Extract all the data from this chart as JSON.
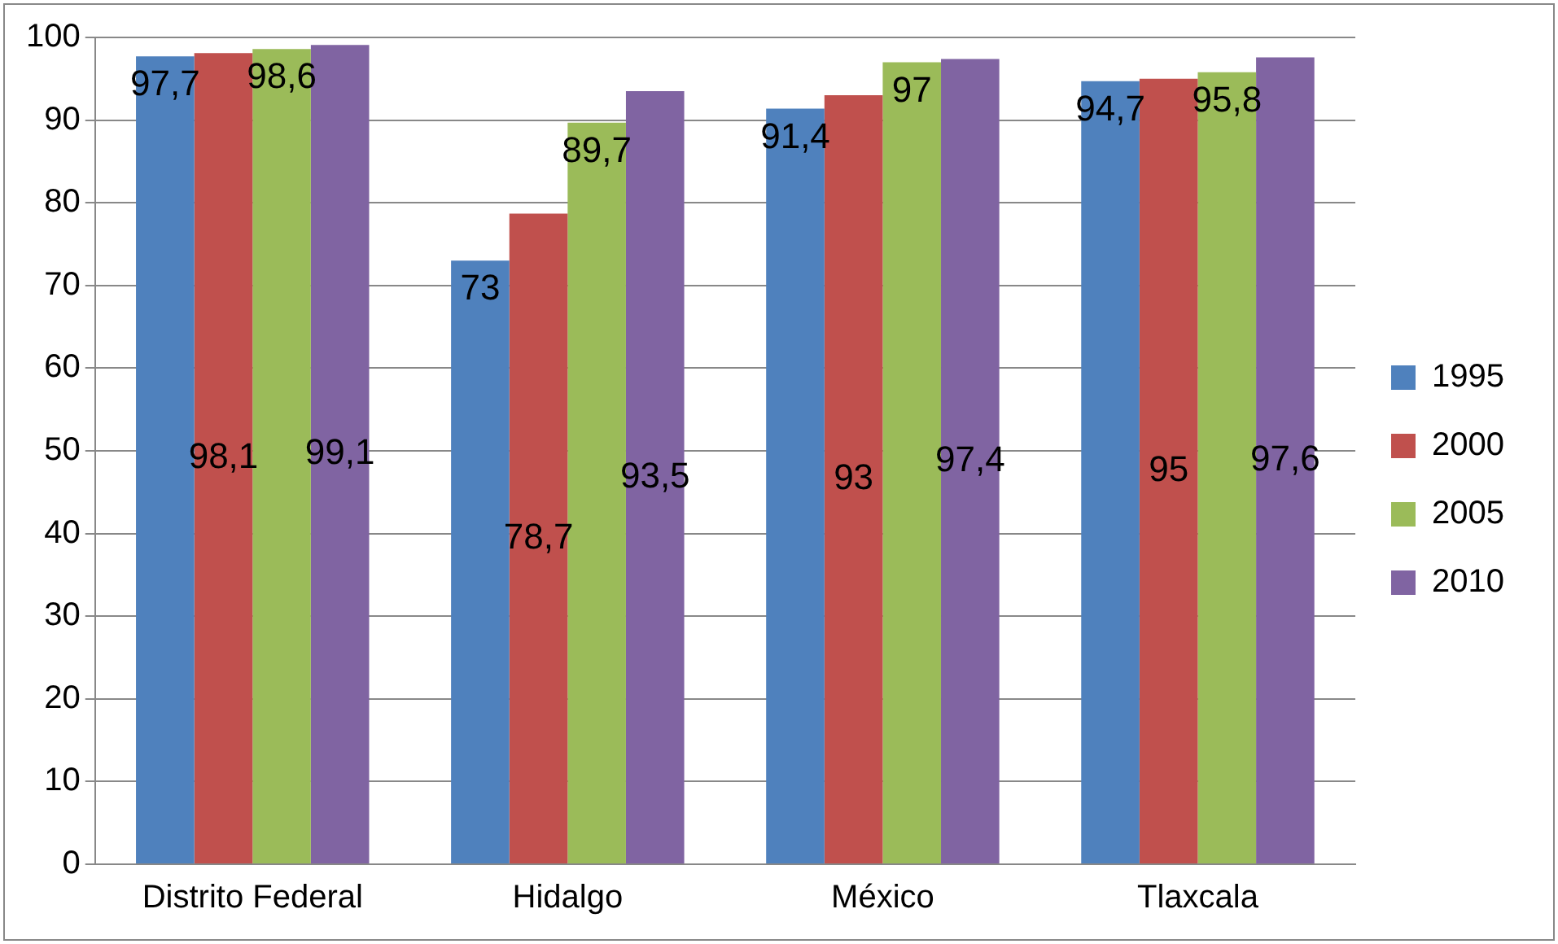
{
  "chart_data": {
    "type": "bar",
    "categories": [
      "Distrito Federal",
      "Hidalgo",
      "México",
      "Tlaxcala"
    ],
    "series": [
      {
        "name": "1995",
        "color": "#4f81bd",
        "values": [
          97.7,
          73,
          91.4,
          94.7
        ],
        "value_labels": [
          "97,7",
          "73",
          "91,4",
          "94,7"
        ]
      },
      {
        "name": "2000",
        "color": "#c0504d",
        "values": [
          98.1,
          78.7,
          93,
          95
        ],
        "value_labels": [
          "98,1",
          "78,7",
          "93",
          "95"
        ]
      },
      {
        "name": "2005",
        "color": "#9bbb59",
        "values": [
          98.6,
          89.7,
          97,
          95.8
        ],
        "value_labels": [
          "98,6",
          "89,7",
          "97",
          "95,8"
        ]
      },
      {
        "name": "2010",
        "color": "#8064a2",
        "values": [
          99.1,
          93.5,
          97.4,
          97.6
        ],
        "value_labels": [
          "99,1",
          "93,5",
          "97,4",
          "97,6"
        ]
      }
    ],
    "ylim": [
      0,
      100
    ],
    "yticks": [
      0,
      10,
      20,
      30,
      40,
      50,
      60,
      70,
      80,
      90,
      100
    ],
    "grid": "y",
    "legend": "right"
  }
}
